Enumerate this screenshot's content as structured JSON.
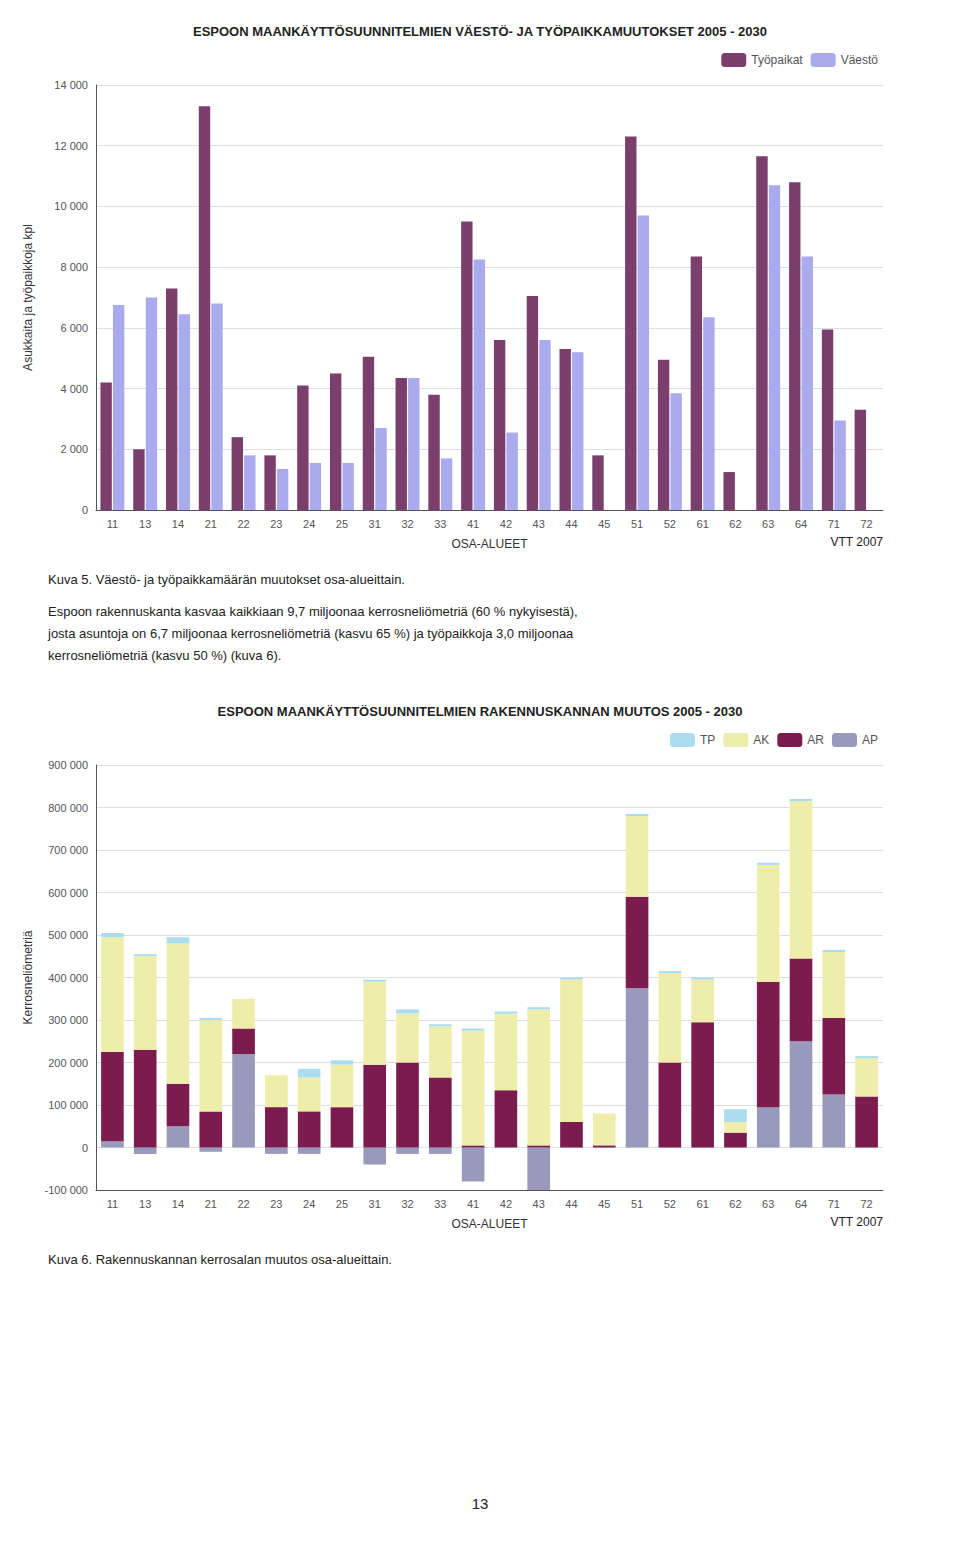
{
  "chart_data": [
    {
      "type": "bar",
      "title": "ESPOON MAANKÄYTTÖSUUNNITELMIEN VÄESTÖ- JA TYÖPAIKKAMUUTOKSET 2005 - 2030",
      "xlabel": "OSA-ALUEET",
      "ylabel": "Asukkaita ja työpaikkoja kpl",
      "categories": [
        "11",
        "13",
        "14",
        "21",
        "22",
        "23",
        "24",
        "25",
        "31",
        "32",
        "33",
        "41",
        "42",
        "43",
        "44",
        "45",
        "51",
        "52",
        "61",
        "62",
        "63",
        "64",
        "71",
        "72"
      ],
      "series": [
        {
          "name": "Työpaikat",
          "color": "#7B3F6E",
          "values": [
            4200,
            2000,
            7300,
            13300,
            2400,
            1800,
            4100,
            4500,
            5050,
            4350,
            3800,
            9500,
            5600,
            7050,
            5300,
            1800,
            12300,
            4950,
            8350,
            1250,
            11650,
            10800,
            5950,
            3300
          ]
        },
        {
          "name": "Väestö",
          "color": "#AAAAEE",
          "values": [
            6750,
            7000,
            6450,
            6800,
            1800,
            1350,
            1550,
            1550,
            2700,
            4350,
            1700,
            8250,
            2550,
            5600,
            5200,
            0,
            9700,
            3850,
            6350,
            0,
            10700,
            8350,
            2950,
            0
          ]
        }
      ],
      "ylim": [
        0,
        14000
      ],
      "yticks": [
        0,
        {
          "value": 2000,
          "label": "2 000"
        },
        {
          "value": 4000,
          "label": "4 000"
        },
        {
          "value": 6000,
          "label": "6 000"
        },
        {
          "value": 8000,
          "label": "8 000"
        },
        {
          "value": 10000,
          "label": "10 000"
        },
        {
          "value": 12000,
          "label": "12 000"
        },
        {
          "value": 14000,
          "label": "14 000"
        }
      ],
      "grid": true,
      "legend": "upper right",
      "annotations": [
        "VTT 2007",
        "Kuva 5. Väestö- ja työpaikkamäärän muutokset osa-alueittain.",
        "Espoon rakennuskanta kasvaa kaikkiaan 9,7 miljoonaa kerrosneliömetriä (60 % nykyisestä),\njosta asuntoja on 6,7 miljoonaa kerrosneliömetriä (kasvu 65 %) ja työpaikkoja 3,0 miljoonaa\nkerrosneliömetriä (kasvu 50 %) (kuva 6)."
      ]
    },
    {
      "type": "bar",
      "title": "ESPOON MAANKÄYTTÖSUUNNITELMIEN RAKENNUSKANNAN MUUTOS 2005 - 2030",
      "xlabel": "OSA-ALUEET",
      "ylabel": "Kerrosneliömetriä",
      "categories": [
        "11",
        "13",
        "14",
        "21",
        "22",
        "23",
        "24",
        "25",
        "31",
        "32",
        "33",
        "41",
        "42",
        "43",
        "44",
        "45",
        "51",
        "52",
        "61",
        "62",
        "63",
        "64",
        "71",
        "72"
      ],
      "stacked": true,
      "series": [
        {
          "name": "AP",
          "color": "#9999BB",
          "values": [
            15000,
            -15000,
            50000,
            -10000,
            220000,
            -15000,
            -15000,
            0,
            -40000,
            -15000,
            -15000,
            -80000,
            0,
            -100000,
            0,
            0,
            375000,
            0,
            0,
            0,
            95000,
            250000,
            125000,
            0
          ]
        },
        {
          "name": "AR",
          "color": "#7B1B4E",
          "values": [
            210000,
            230000,
            100000,
            85000,
            60000,
            95000,
            85000,
            95000,
            195000,
            200000,
            165000,
            5000,
            135000,
            5000,
            60000,
            5000,
            215000,
            200000,
            295000,
            35000,
            295000,
            195000,
            180000,
            120000
          ]
        },
        {
          "name": "AK",
          "color": "#EEEEAA",
          "values": [
            270000,
            220000,
            330000,
            215000,
            70000,
            75000,
            80000,
            100000,
            195000,
            115000,
            120000,
            270000,
            180000,
            320000,
            335000,
            75000,
            190000,
            210000,
            100000,
            25000,
            275000,
            370000,
            155000,
            90000
          ]
        },
        {
          "name": "TP",
          "color": "#AADDEE",
          "values": [
            10000,
            5000,
            15000,
            5000,
            0,
            0,
            20000,
            10000,
            5000,
            10000,
            5000,
            5000,
            5000,
            5000,
            5000,
            0,
            5000,
            5000,
            5000,
            30000,
            5000,
            5000,
            5000,
            5000
          ]
        }
      ],
      "ylim": [
        -100000,
        900000
      ],
      "yticks": [
        {
          "value": -100000,
          "label": "-100 000"
        },
        0,
        {
          "value": 100000,
          "label": "100 000"
        },
        {
          "value": 200000,
          "label": "200 000"
        },
        {
          "value": 300000,
          "label": "300 000"
        },
        {
          "value": 400000,
          "label": "400 000"
        },
        {
          "value": 500000,
          "label": "500 000"
        },
        {
          "value": 600000,
          "label": "600 000"
        },
        {
          "value": 700000,
          "label": "700 000"
        },
        {
          "value": 800000,
          "label": "800 000"
        },
        {
          "value": 900000,
          "label": "900 000"
        }
      ],
      "grid": true,
      "legend": "upper right",
      "annotations": [
        "VTT 2007",
        "Kuva 6. Rakennuskannan kerrosalan muutos osa-alueittain.",
        "13"
      ]
    }
  ]
}
